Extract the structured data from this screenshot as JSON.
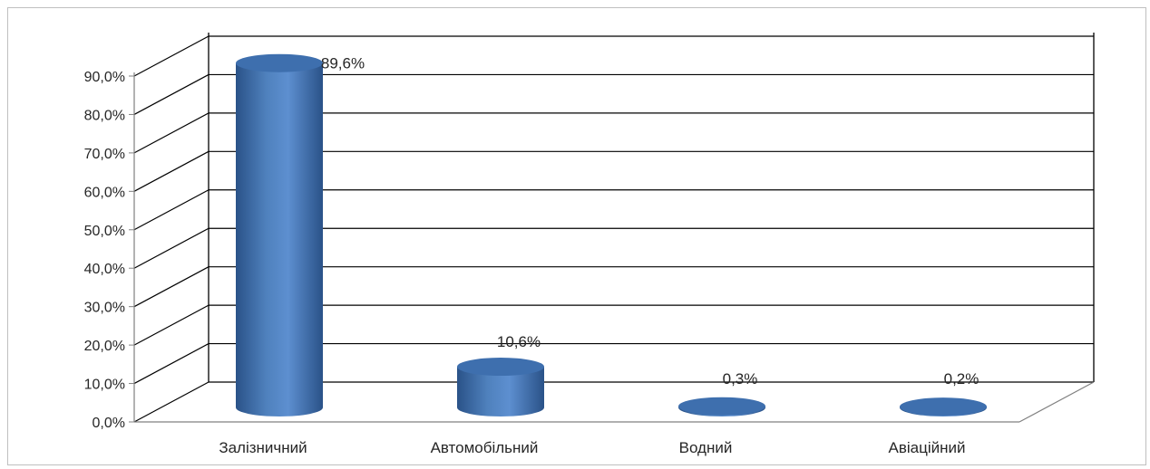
{
  "chart_data": {
    "type": "bar",
    "title": "",
    "xlabel": "",
    "ylabel": "",
    "categories": [
      "Залізничний",
      "Автомобільний",
      "Водний",
      "Авіаційний"
    ],
    "values": [
      89.6,
      10.6,
      0.3,
      0.2
    ],
    "data_labels": [
      "89,6%",
      "10,6%",
      "0,3%",
      "0,2%"
    ],
    "ylim": [
      0,
      90
    ],
    "yticks": [
      0,
      10,
      20,
      30,
      40,
      50,
      60,
      70,
      80,
      90
    ],
    "ytick_labels": [
      "0,0%",
      "10,0%",
      "20,0%",
      "30,0%",
      "40,0%",
      "50,0%",
      "60,0%",
      "70,0%",
      "80,0%",
      "90,0%"
    ],
    "grid": true,
    "legend": "none",
    "style": "3d-cylinder",
    "bar_color": "#4f81bd"
  }
}
